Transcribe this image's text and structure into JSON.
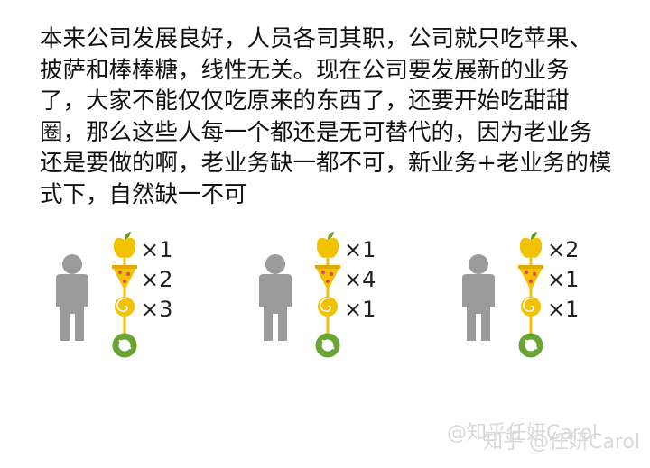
{
  "paragraph": {
    "lines": [
      "本来公司发展良好，人员各司其职，公司就只吃苹果、",
      "披萨和棒棒糖，线性无关。现在公司要发展新的业务",
      "了，大家不能仅仅吃原来的东西了，还要开始吃甜甜",
      "圈，那么这些人每一个都还是无可替代的，因为老业务",
      "还是要做的啊，老业务缺一都不可，新业务+老业务的模",
      "式下，自然缺一不可"
    ]
  },
  "groups": [
    {
      "apple": "×1",
      "pizza": "×2",
      "lollipop": "×3"
    },
    {
      "apple": "×1",
      "pizza": "×4",
      "lollipop": "×1"
    },
    {
      "apple": "×2",
      "pizza": "×1",
      "lollipop": "×1"
    }
  ],
  "watermarks": [
    "@知乎任妍Carol",
    "知乎 @任妍Carol"
  ]
}
